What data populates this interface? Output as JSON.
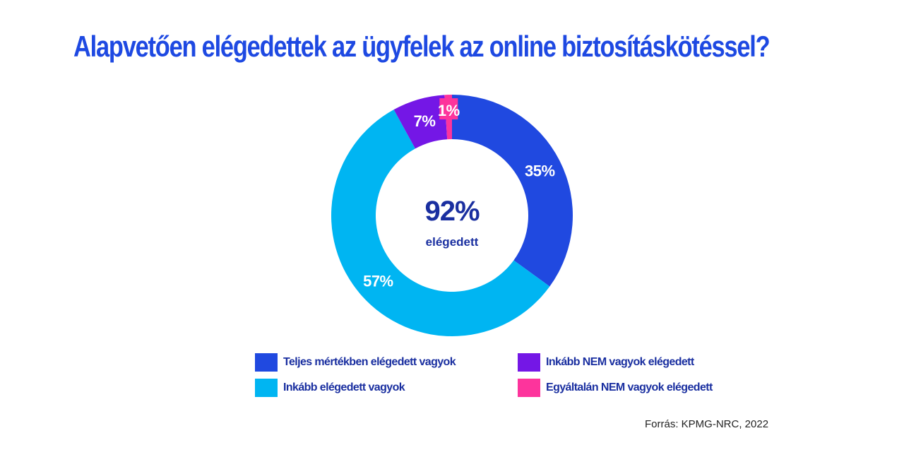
{
  "title": "Alapvetően elégedettek az ügyfelek az online biztosításkötéssel?",
  "chart_data": {
    "type": "pie",
    "variant": "donut",
    "center": {
      "value": "92%",
      "label": "elégedett"
    },
    "categories": [
      "Teljes mértékben elégedett vagyok",
      "Inkább elégedett vagyok",
      "Inkább NEM vagyok elégedett",
      "Egyáltalán NEM vagyok elégedett"
    ],
    "values": [
      35,
      57,
      7,
      1
    ],
    "value_labels": [
      "35%",
      "57%",
      "7%",
      "1%"
    ],
    "colors": [
      "#2049e0",
      "#00b5f2",
      "#7417e6",
      "#fd349c"
    ],
    "legend_position": "bottom"
  },
  "legend": [
    {
      "label": "Teljes mértékben elégedett vagyok",
      "color": "#2049e0"
    },
    {
      "label": "Inkább elégedett vagyok",
      "color": "#00b5f2"
    },
    {
      "label": "Inkább NEM vagyok elégedett",
      "color": "#7417e6"
    },
    {
      "label": "Egyáltalán NEM vagyok elégedett",
      "color": "#fd349c"
    }
  ],
  "source": "Forrás: KPMG-NRC, 2022"
}
